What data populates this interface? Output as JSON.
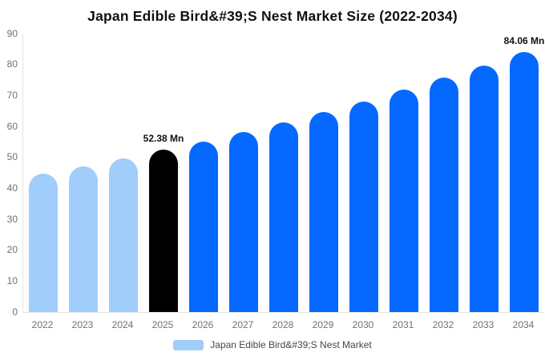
{
  "chart_data": {
    "type": "bar",
    "title": "Japan Edible Bird&#39;S Nest Market Size (2022-2034)",
    "categories": [
      "2022",
      "2023",
      "2024",
      "2025",
      "2026",
      "2027",
      "2028",
      "2029",
      "2030",
      "2031",
      "2032",
      "2033",
      "2034"
    ],
    "series": [
      {
        "name": "Japan Edible Bird&#39;S Nest Market",
        "values": [
          44.74,
          47.15,
          49.7,
          52.38,
          55.21,
          58.19,
          61.33,
          64.64,
          68.13,
          71.8,
          75.68,
          79.76,
          84.06
        ]
      }
    ],
    "bar_colors": [
      "#a1cdfb",
      "#a1cdfb",
      "#a1cdfb",
      "#000000",
      "#0569ff",
      "#0569ff",
      "#0569ff",
      "#0569ff",
      "#0569ff",
      "#0569ff",
      "#0569ff",
      "#0569ff",
      "#0569ff"
    ],
    "xlabel": "",
    "ylabel": "",
    "ylim": [
      0,
      90
    ],
    "ytick_step": 10,
    "yticks": [
      0,
      10,
      20,
      30,
      40,
      50,
      60,
      70,
      80,
      90
    ],
    "grid": false,
    "legend_position": "bottom",
    "annotations": [
      {
        "category": "2025",
        "text": "52.38 Mn"
      },
      {
        "category": "2034",
        "text": "84.06 Mn"
      }
    ],
    "legend": [
      {
        "label": "Japan Edible Bird&#39;S Nest Market",
        "color": "#a1cdfb"
      }
    ]
  },
  "colors": {
    "historical_bar": "#a1cdfb",
    "highlight_bar": "#000000",
    "forecast_bar": "#0569ff",
    "axis_line": "#e3e3e3",
    "tick_label": "#6e7173",
    "legend_text": "#43474c",
    "title_text": "#111111",
    "annotation_text": "#111111",
    "background": "#ffffff"
  }
}
